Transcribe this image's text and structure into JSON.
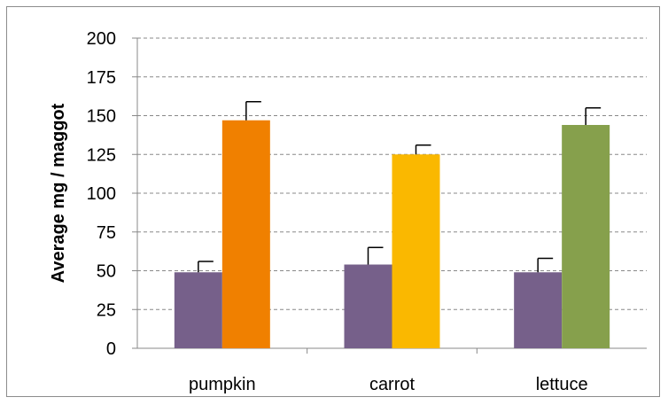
{
  "chart_data": {
    "type": "bar",
    "title": "",
    "xlabel": "",
    "ylabel": "Average mg / maggot",
    "ylim": [
      0,
      200
    ],
    "ytick_step": 25,
    "grid": true,
    "categories": [
      "pumpkin",
      "carrot",
      "lettuce"
    ],
    "series": [
      {
        "values": [
          49,
          54,
          49
        ],
        "errors": [
          7,
          11,
          9
        ],
        "colors": [
          "#76608A",
          "#76608A",
          "#76608A"
        ]
      },
      {
        "values": [
          147,
          125,
          144
        ],
        "errors": [
          12,
          6,
          11
        ],
        "colors": [
          "#F08000",
          "#FAB800",
          "#86A04C"
        ]
      }
    ]
  }
}
